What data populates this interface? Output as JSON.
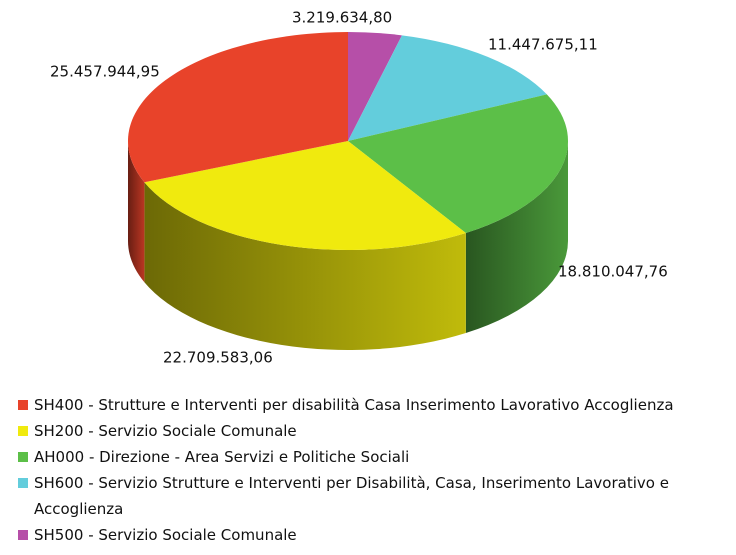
{
  "chart_data": {
    "type": "pie3d",
    "series": [
      {
        "name": "SH400 - Strutture e Interventi per disabilità Casa Inserimento Lavorativo Accoglienza",
        "color": "#e8432a",
        "values": [
          25457944.95
        ],
        "value_labels": [
          "25.457.944,95"
        ]
      },
      {
        "name": "SH200 - Servizio Sociale Comunale",
        "color": "#f0ea0e",
        "values": [
          22709583.06
        ],
        "value_labels": [
          "22.709.583,06"
        ]
      },
      {
        "name": "AH000 - Direzione - Area Servizi e Politiche Sociali",
        "color": "#5cbf48",
        "values": [
          18810047.76
        ],
        "value_labels": [
          "18.810.047,76"
        ]
      },
      {
        "name": "SH600 - Servizio Strutture e Interventi per Disabilità, Casa, Inserimento Lavorativo e Accoglienza",
        "color": "#63cddc",
        "values": [
          11447675.11
        ],
        "value_labels": [
          "11.447.675,11"
        ]
      },
      {
        "name": "SH500 - Servizio Sociale Comunale",
        "color": "#b64fa8",
        "values": [
          3219634.8
        ],
        "value_labels": [
          "3.219.634,80"
        ]
      }
    ],
    "legend": "bottom"
  }
}
